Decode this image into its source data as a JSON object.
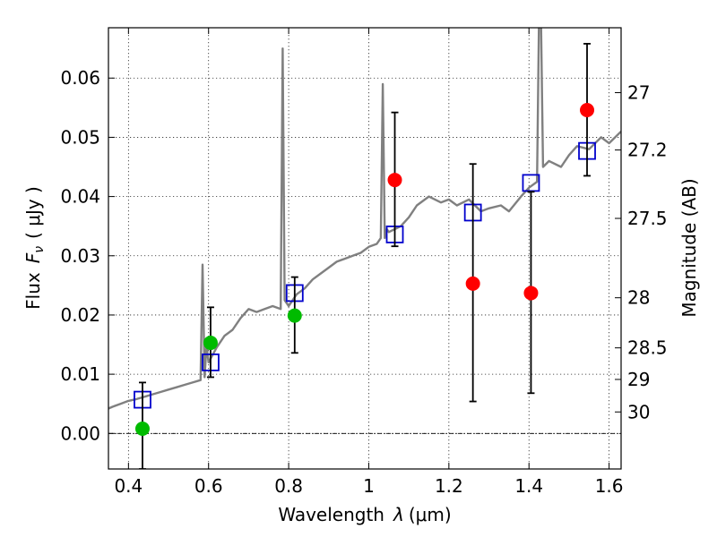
{
  "chart_data": {
    "type": "scatter",
    "xlabel_prefix": "Wavelength",
    "xlabel_symbol": "λ",
    "xlabel_unit": "(μm)",
    "ylabel_prefix": "Flux",
    "ylabel_symbol": "F",
    "ylabel_subscript": "ν",
    "ylabel_unit": "( μJy )",
    "y2label": "Magnitude (AB)",
    "xlim": [
      0.35,
      1.63
    ],
    "ylim": [
      -0.006,
      0.0685
    ],
    "grid": true,
    "x_ticks": [
      0.4,
      0.6,
      0.8,
      1.0,
      1.2,
      1.4,
      1.6
    ],
    "x_tick_labels": [
      "0.4",
      "0.6",
      "0.8",
      "1",
      "1.2",
      "1.4",
      "1.6"
    ],
    "y_ticks": [
      0.0,
      0.01,
      0.02,
      0.03,
      0.04,
      0.05,
      0.06
    ],
    "y_tick_labels": [
      "0.00",
      "0.01",
      "0.02",
      "0.03",
      "0.04",
      "0.05",
      "0.06"
    ],
    "mag_ticks": [
      {
        "label": "27",
        "flux": 0.05754
      },
      {
        "label": "27.2",
        "flux": 0.04786
      },
      {
        "label": "27.5",
        "flux": 0.03631
      },
      {
        "label": "28",
        "flux": 0.02291
      },
      {
        "label": "28.5",
        "flux": 0.01445
      },
      {
        "label": "29",
        "flux": 0.00912
      },
      {
        "label": "30",
        "flux": 0.00363
      }
    ],
    "colors": {
      "model": "#808080",
      "model_photometry": "#0000cc",
      "detections": "#00bb00",
      "upper_limits": "#ff0000",
      "errorbars": "#000000",
      "zero_line": "#000000"
    },
    "series": [
      {
        "kind": "line",
        "x": [
          0.35,
          0.36,
          0.38,
          0.4,
          0.42,
          0.44,
          0.46,
          0.48,
          0.5,
          0.52,
          0.54,
          0.56,
          0.58,
          0.585,
          0.59,
          0.595,
          0.6,
          0.62,
          0.64,
          0.66,
          0.68,
          0.7,
          0.72,
          0.74,
          0.76,
          0.78,
          0.785,
          0.79,
          0.8,
          0.82,
          0.84,
          0.86,
          0.88,
          0.9,
          0.92,
          0.94,
          0.96,
          0.98,
          1.0,
          1.02,
          1.03,
          1.035,
          1.04,
          1.045,
          1.05,
          1.08,
          1.1,
          1.12,
          1.15,
          1.18,
          1.2,
          1.22,
          1.25,
          1.28,
          1.3,
          1.33,
          1.35,
          1.38,
          1.4,
          1.42,
          1.425,
          1.43,
          1.435,
          1.45,
          1.48,
          1.5,
          1.52,
          1.55,
          1.58,
          1.6,
          1.63
        ],
        "y": [
          0.0042,
          0.0045,
          0.005,
          0.0055,
          0.0058,
          0.0062,
          0.0066,
          0.007,
          0.0074,
          0.0078,
          0.0082,
          0.0086,
          0.009,
          0.0285,
          0.0095,
          0.015,
          0.012,
          0.0145,
          0.0165,
          0.0175,
          0.0195,
          0.021,
          0.0205,
          0.021,
          0.0215,
          0.021,
          0.065,
          0.0225,
          0.0215,
          0.0235,
          0.0245,
          0.026,
          0.027,
          0.028,
          0.029,
          0.0295,
          0.03,
          0.0305,
          0.0315,
          0.032,
          0.033,
          0.059,
          0.033,
          0.0345,
          0.034,
          0.035,
          0.0365,
          0.0385,
          0.04,
          0.039,
          0.0395,
          0.0385,
          0.0395,
          0.0375,
          0.038,
          0.0385,
          0.0375,
          0.04,
          0.0415,
          0.0425,
          0.07,
          0.07,
          0.045,
          0.046,
          0.045,
          0.047,
          0.0485,
          0.048,
          0.05,
          0.049,
          0.051
        ]
      },
      {
        "kind": "open-square",
        "x": [
          0.435,
          0.605,
          0.815,
          1.065,
          1.26,
          1.405,
          1.545
        ],
        "y": [
          0.0057,
          0.012,
          0.0237,
          0.0336,
          0.0373,
          0.0423,
          0.0477
        ]
      },
      {
        "kind": "filled-circle",
        "color_key": "detections",
        "x": [
          0.435,
          0.605,
          0.815
        ],
        "y": [
          0.0008,
          0.0153,
          0.0199
        ],
        "yerr_low": [
          0.0068,
          0.0058,
          0.0063
        ],
        "yerr_high": [
          0.0078,
          0.006,
          0.0065
        ]
      },
      {
        "kind": "filled-circle",
        "color_key": "upper_limits",
        "x": [
          1.065,
          1.26,
          1.405,
          1.545
        ],
        "y": [
          0.0428,
          0.0253,
          0.0237,
          0.0546
        ],
        "yerr_low": [
          0.0112,
          0.0199,
          0.0169,
          0.0111
        ],
        "yerr_high": [
          0.0114,
          0.0202,
          0.0171,
          0.0112
        ]
      }
    ]
  }
}
